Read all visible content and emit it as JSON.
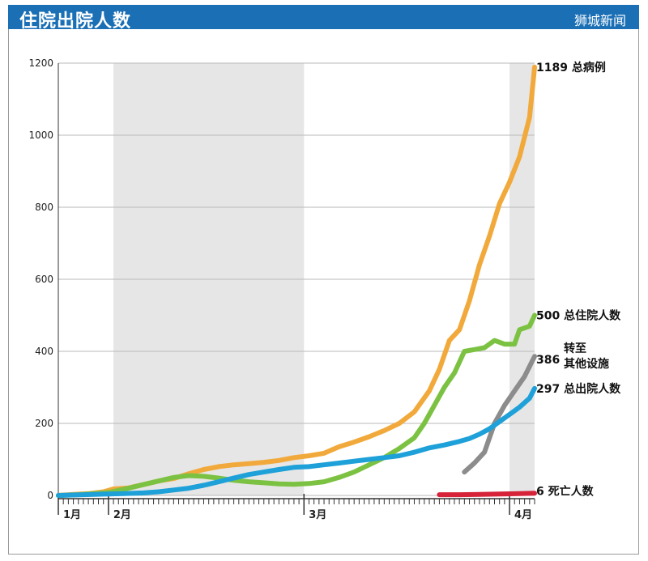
{
  "header": {
    "title": "住院出院人数",
    "source": "狮城新闻"
  },
  "colors": {
    "header_bg": "#1a6fb5",
    "total_cases": "#f2a93b",
    "hospitalized": "#7cc242",
    "transferred": "#8c8c8c",
    "discharged": "#1ea0d8",
    "deaths": "#d6233a",
    "shade": "#e6e6e6"
  },
  "chart_data": {
    "type": "line",
    "title": "住院出院人数",
    "xlabel": "",
    "ylabel": "",
    "ylim": [
      0,
      1200
    ],
    "yticks": [
      0,
      200,
      400,
      600,
      800,
      1000,
      1200
    ],
    "x_unit": "day since 1月1日 (approx.)",
    "xlim": [
      0,
      95
    ],
    "month_ticks": [
      {
        "label": "1月",
        "day": 0
      },
      {
        "label": "2月",
        "day": 10
      },
      {
        "label": "3月",
        "day": 49
      },
      {
        "label": "4月",
        "day": 90
      }
    ],
    "shaded_ranges": [
      [
        11,
        49
      ],
      [
        90,
        95
      ]
    ],
    "grid": true,
    "series": [
      {
        "name": "总病例",
        "end_label_value": "1189",
        "color": "#f2a93b",
        "points": [
          [
            0,
            0
          ],
          [
            3,
            3
          ],
          [
            6,
            5
          ],
          [
            9,
            10
          ],
          [
            11,
            18
          ],
          [
            14,
            21
          ],
          [
            17,
            30
          ],
          [
            20,
            40
          ],
          [
            23,
            47
          ],
          [
            26,
            60
          ],
          [
            29,
            72
          ],
          [
            32,
            80
          ],
          [
            35,
            85
          ],
          [
            38,
            88
          ],
          [
            41,
            92
          ],
          [
            44,
            97
          ],
          [
            47,
            105
          ],
          [
            50,
            110
          ],
          [
            53,
            117
          ],
          [
            56,
            135
          ],
          [
            59,
            148
          ],
          [
            62,
            163
          ],
          [
            65,
            180
          ],
          [
            68,
            200
          ],
          [
            71,
            232
          ],
          [
            74,
            290
          ],
          [
            76,
            350
          ],
          [
            78,
            430
          ],
          [
            80,
            460
          ],
          [
            82,
            540
          ],
          [
            84,
            640
          ],
          [
            86,
            720
          ],
          [
            88,
            810
          ],
          [
            90,
            870
          ],
          [
            92,
            940
          ],
          [
            94,
            1050
          ],
          [
            95,
            1189
          ]
        ]
      },
      {
        "name": "总住院人数",
        "end_label_value": "500",
        "color": "#7cc242",
        "points": [
          [
            0,
            0
          ],
          [
            5,
            3
          ],
          [
            10,
            8
          ],
          [
            14,
            20
          ],
          [
            17,
            30
          ],
          [
            20,
            40
          ],
          [
            23,
            50
          ],
          [
            26,
            55
          ],
          [
            29,
            53
          ],
          [
            32,
            48
          ],
          [
            35,
            42
          ],
          [
            38,
            38
          ],
          [
            41,
            35
          ],
          [
            44,
            32
          ],
          [
            47,
            31
          ],
          [
            50,
            33
          ],
          [
            53,
            38
          ],
          [
            56,
            50
          ],
          [
            59,
            65
          ],
          [
            62,
            85
          ],
          [
            65,
            105
          ],
          [
            68,
            130
          ],
          [
            71,
            160
          ],
          [
            73,
            200
          ],
          [
            75,
            250
          ],
          [
            77,
            300
          ],
          [
            79,
            340
          ],
          [
            81,
            400
          ],
          [
            83,
            405
          ],
          [
            85,
            410
          ],
          [
            87,
            430
          ],
          [
            89,
            420
          ],
          [
            91,
            420
          ],
          [
            92,
            460
          ],
          [
            94,
            470
          ],
          [
            95,
            500
          ]
        ]
      },
      {
        "name": "转至其他设施",
        "end_label_value": "386",
        "color": "#8c8c8c",
        "points": [
          [
            81,
            65
          ],
          [
            83,
            90
          ],
          [
            85,
            120
          ],
          [
            87,
            200
          ],
          [
            89,
            250
          ],
          [
            91,
            290
          ],
          [
            93,
            330
          ],
          [
            95,
            386
          ]
        ]
      },
      {
        "name": "总出院人数",
        "end_label_value": "297",
        "color": "#1ea0d8",
        "points": [
          [
            0,
            0
          ],
          [
            5,
            2
          ],
          [
            10,
            4
          ],
          [
            13,
            5
          ],
          [
            17,
            7
          ],
          [
            20,
            10
          ],
          [
            23,
            15
          ],
          [
            26,
            20
          ],
          [
            29,
            28
          ],
          [
            32,
            38
          ],
          [
            35,
            48
          ],
          [
            38,
            58
          ],
          [
            41,
            65
          ],
          [
            44,
            72
          ],
          [
            47,
            78
          ],
          [
            50,
            80
          ],
          [
            53,
            85
          ],
          [
            56,
            90
          ],
          [
            59,
            95
          ],
          [
            62,
            100
          ],
          [
            65,
            105
          ],
          [
            68,
            110
          ],
          [
            71,
            120
          ],
          [
            74,
            132
          ],
          [
            77,
            140
          ],
          [
            80,
            150
          ],
          [
            82,
            158
          ],
          [
            84,
            170
          ],
          [
            86,
            185
          ],
          [
            88,
            205
          ],
          [
            90,
            225
          ],
          [
            92,
            245
          ],
          [
            94,
            270
          ],
          [
            95,
            297
          ]
        ]
      },
      {
        "name": "死亡人数",
        "end_label_value": "6",
        "color": "#d6233a",
        "points": [
          [
            76,
            2
          ],
          [
            80,
            2
          ],
          [
            84,
            3
          ],
          [
            88,
            4
          ],
          [
            92,
            5
          ],
          [
            95,
            6
          ]
        ]
      }
    ]
  },
  "end_labels": [
    {
      "value": "1189",
      "name": "总病例"
    },
    {
      "value": "500",
      "name": "总住院人数"
    },
    {
      "value": "386",
      "name_line1": "转至",
      "name_line2": "其他设施"
    },
    {
      "value": "297",
      "name": "总出院人数"
    },
    {
      "value": "6",
      "name": "死亡人数"
    }
  ]
}
